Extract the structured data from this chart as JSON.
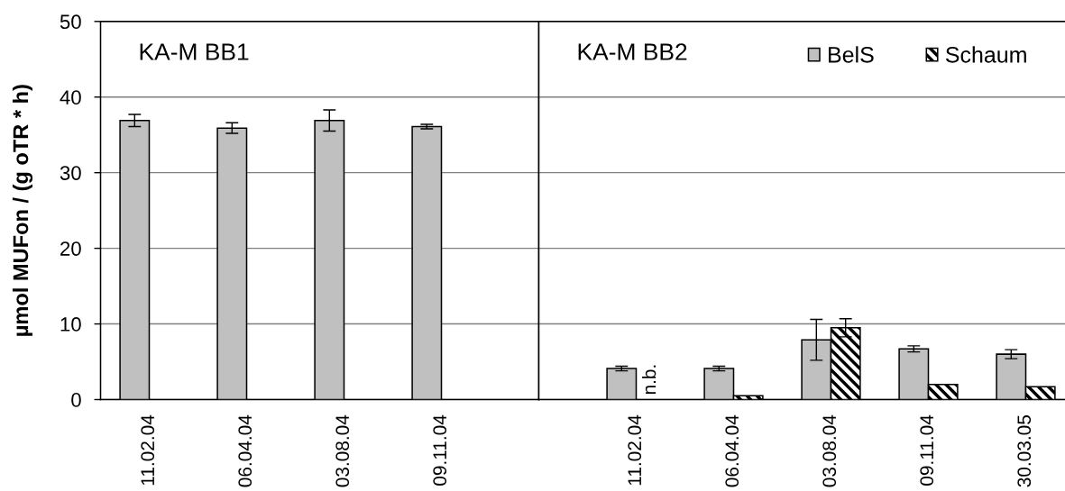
{
  "chart_data": [
    {
      "type": "bar",
      "title": "KA-M BB1",
      "ylabel": "µmol MUFon / (g oTR * h)",
      "categories": [
        "11.02.04",
        "06.04.04",
        "03.08.04",
        "09.11.04"
      ],
      "series": [
        {
          "color": "#c0c0c0",
          "values": [
            36.9,
            35.9,
            36.9,
            36.1
          ],
          "errors": [
            0.8,
            0.7,
            1.4,
            0.3
          ]
        },
        {
          "color": "#000000",
          "values": [
            null,
            null,
            null,
            null
          ]
        }
      ],
      "ylim": [
        0,
        50
      ],
      "yticks": [
        0,
        10,
        20,
        30,
        40,
        50
      ],
      "grid": "y"
    },
    {
      "type": "bar",
      "title": "KA-M BB2",
      "categories": [
        "11.02.04",
        "06.04.04",
        "03.08.04",
        "09.11.04",
        "30.03.05"
      ],
      "series": [
        {
          "name": "BelS",
          "color": "#c0c0c0",
          "values": [
            4.1,
            4.1,
            7.9,
            6.7,
            6.0
          ],
          "errors": [
            0.3,
            0.3,
            2.7,
            0.4,
            0.6
          ]
        },
        {
          "name": "Schaum",
          "color": "#000000",
          "values": [
            null,
            0.5,
            9.5,
            2.0,
            1.7
          ],
          "errors": [
            null,
            null,
            1.2,
            null,
            null
          ]
        }
      ],
      "ylim": [
        0,
        50
      ],
      "yticks": [
        0,
        10,
        20,
        30,
        40,
        50
      ],
      "grid": "y",
      "legend": "top right",
      "tick_labels": "x",
      "annotations": [
        {
          "text": "n.b.",
          "x": "11.02.04",
          "y": 0
        }
      ]
    }
  ]
}
